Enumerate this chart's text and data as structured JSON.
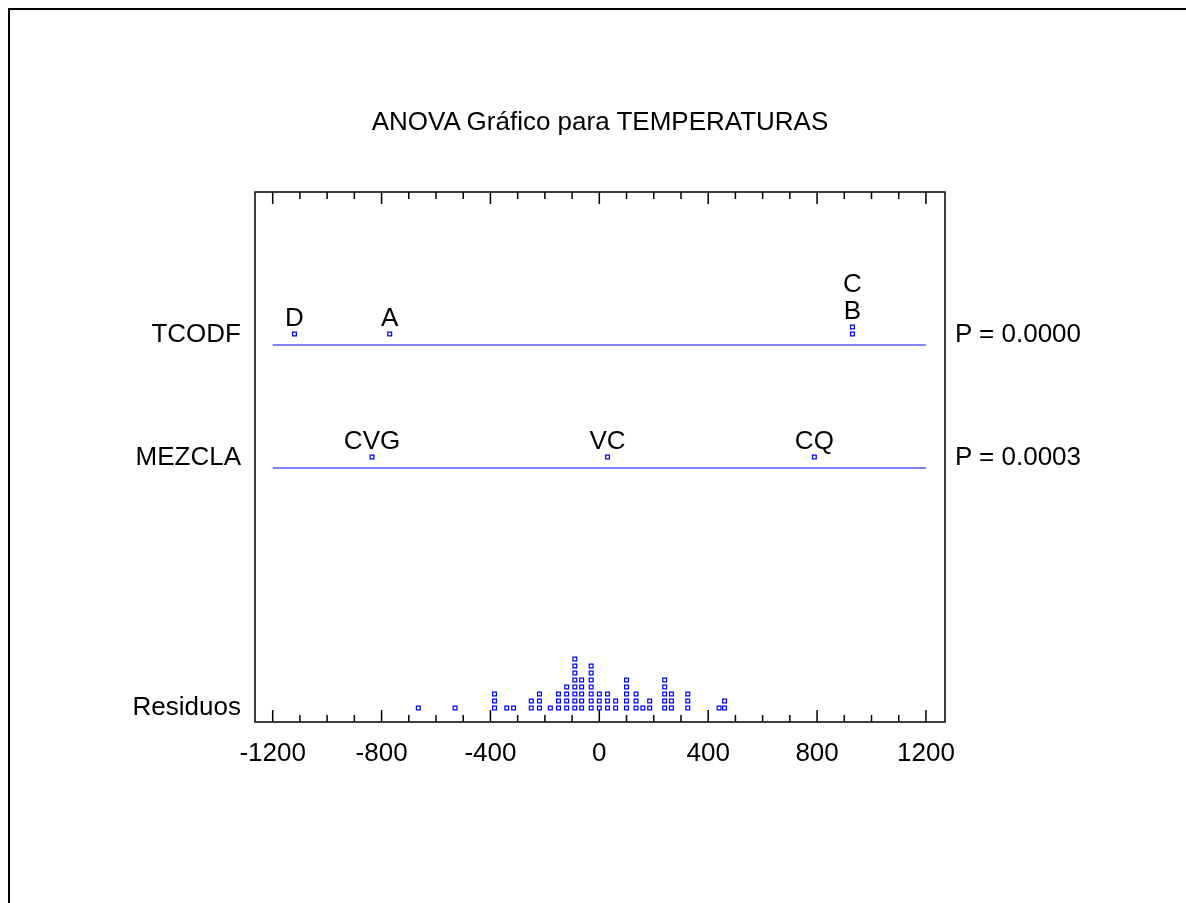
{
  "chart_data": {
    "type": "scatter",
    "title": "ANOVA Gráfico para TEMPERATURAS",
    "orientation": "horizontal",
    "categories": [
      "TCODF",
      "MEZCLA",
      "Residuos"
    ],
    "xlim": [
      -1265,
      1270
    ],
    "xticks": [
      -1200,
      {
        "value": -1100,
        "label": null
      },
      {
        "value": -1000,
        "label": null
      },
      {
        "value": -900,
        "label": null
      },
      -800,
      {
        "value": -700,
        "label": null
      },
      {
        "value": -600,
        "label": null
      },
      {
        "value": -500,
        "label": null
      },
      -400,
      {
        "value": -300,
        "label": null
      },
      {
        "value": -200,
        "label": null
      },
      {
        "value": -100,
        "label": null
      },
      0,
      {
        "value": 100,
        "label": null
      },
      {
        "value": 200,
        "label": null
      },
      {
        "value": 300,
        "label": null
      },
      400,
      {
        "value": 500,
        "label": null
      },
      {
        "value": 600,
        "label": null
      },
      {
        "value": 700,
        "label": null
      },
      800,
      {
        "value": 900,
        "label": null
      },
      {
        "value": 1000,
        "label": null
      },
      {
        "value": 1100,
        "label": null
      },
      1200
    ],
    "series": [
      {
        "color": "#0000ff",
        "x": [
          "TCODF",
          "TCODF",
          "TCODF",
          "TCODF"
        ],
        "values": [
          -1120,
          -770,
          930,
          930
        ],
        "value_labels": [
          "D",
          "A",
          "B",
          "C"
        ]
      },
      {
        "color": "#0000ff",
        "x": [
          "MEZCLA",
          "MEZCLA",
          "MEZCLA"
        ],
        "values": [
          -835,
          30,
          790
        ],
        "value_labels": [
          "CVG",
          "VC",
          "CQ"
        ]
      },
      {
        "color": "#0000ff",
        "x": [
          "Residuos",
          "Residuos",
          "Residuos",
          "Residuos",
          "Residuos",
          "Residuos",
          "Residuos",
          "Residuos",
          "Residuos",
          "Residuos",
          "Residuos",
          "Residuos",
          "Residuos",
          "Residuos",
          "Residuos",
          "Residuos",
          "Residuos",
          "Residuos",
          "Residuos",
          "Residuos",
          "Residuos",
          "Residuos",
          "Residuos",
          "Residuos",
          "Residuos",
          "Residuos",
          "Residuos",
          "Residuos",
          "Residuos",
          "Residuos",
          "Residuos",
          "Residuos",
          "Residuos",
          "Residuos",
          "Residuos",
          "Residuos",
          "Residuos",
          "Residuos",
          "Residuos",
          "Residuos",
          "Residuos",
          "Residuos",
          "Residuos",
          "Residuos",
          "Residuos",
          "Residuos",
          "Residuos",
          "Residuos",
          "Residuos",
          "Residuos",
          "Residuos",
          "Residuos",
          "Residuos",
          "Residuos",
          "Residuos",
          "Residuos",
          "Residuos",
          "Residuos",
          "Residuos",
          "Residuos",
          "Residuos",
          "Residuos",
          "Residuos",
          "Residuos",
          "Residuos",
          "Residuos",
          "Residuos",
          "Residuos",
          "Residuos",
          "Residuos",
          "Residuos",
          "Residuos",
          "Residuos"
        ],
        "values": [
          -665,
          -530,
          -385,
          -385,
          -385,
          -340,
          -315,
          -250,
          -250,
          -220,
          -220,
          -220,
          -180,
          -150,
          -150,
          -150,
          -120,
          -120,
          -120,
          -120,
          -90,
          -90,
          -90,
          -90,
          -90,
          -90,
          -90,
          -90,
          -65,
          -65,
          -65,
          -65,
          -65,
          -30,
          -30,
          -30,
          -30,
          -30,
          -30,
          -30,
          0,
          0,
          0,
          30,
          30,
          30,
          60,
          60,
          100,
          100,
          100,
          100,
          100,
          135,
          135,
          135,
          160,
          185,
          185,
          240,
          240,
          240,
          240,
          240,
          265,
          265,
          265,
          325,
          325,
          325,
          440,
          460,
          460
        ]
      }
    ],
    "ref_lines": [
      {
        "axis": "y",
        "value": "TCODF",
        "color": "#0000ff"
      },
      {
        "axis": "y",
        "value": "MEZCLA",
        "color": "#0000ff"
      }
    ],
    "annotations": [
      "P = 0.0000",
      "P = 0.0003"
    ],
    "marker": "square",
    "grid": false,
    "legend": false
  }
}
